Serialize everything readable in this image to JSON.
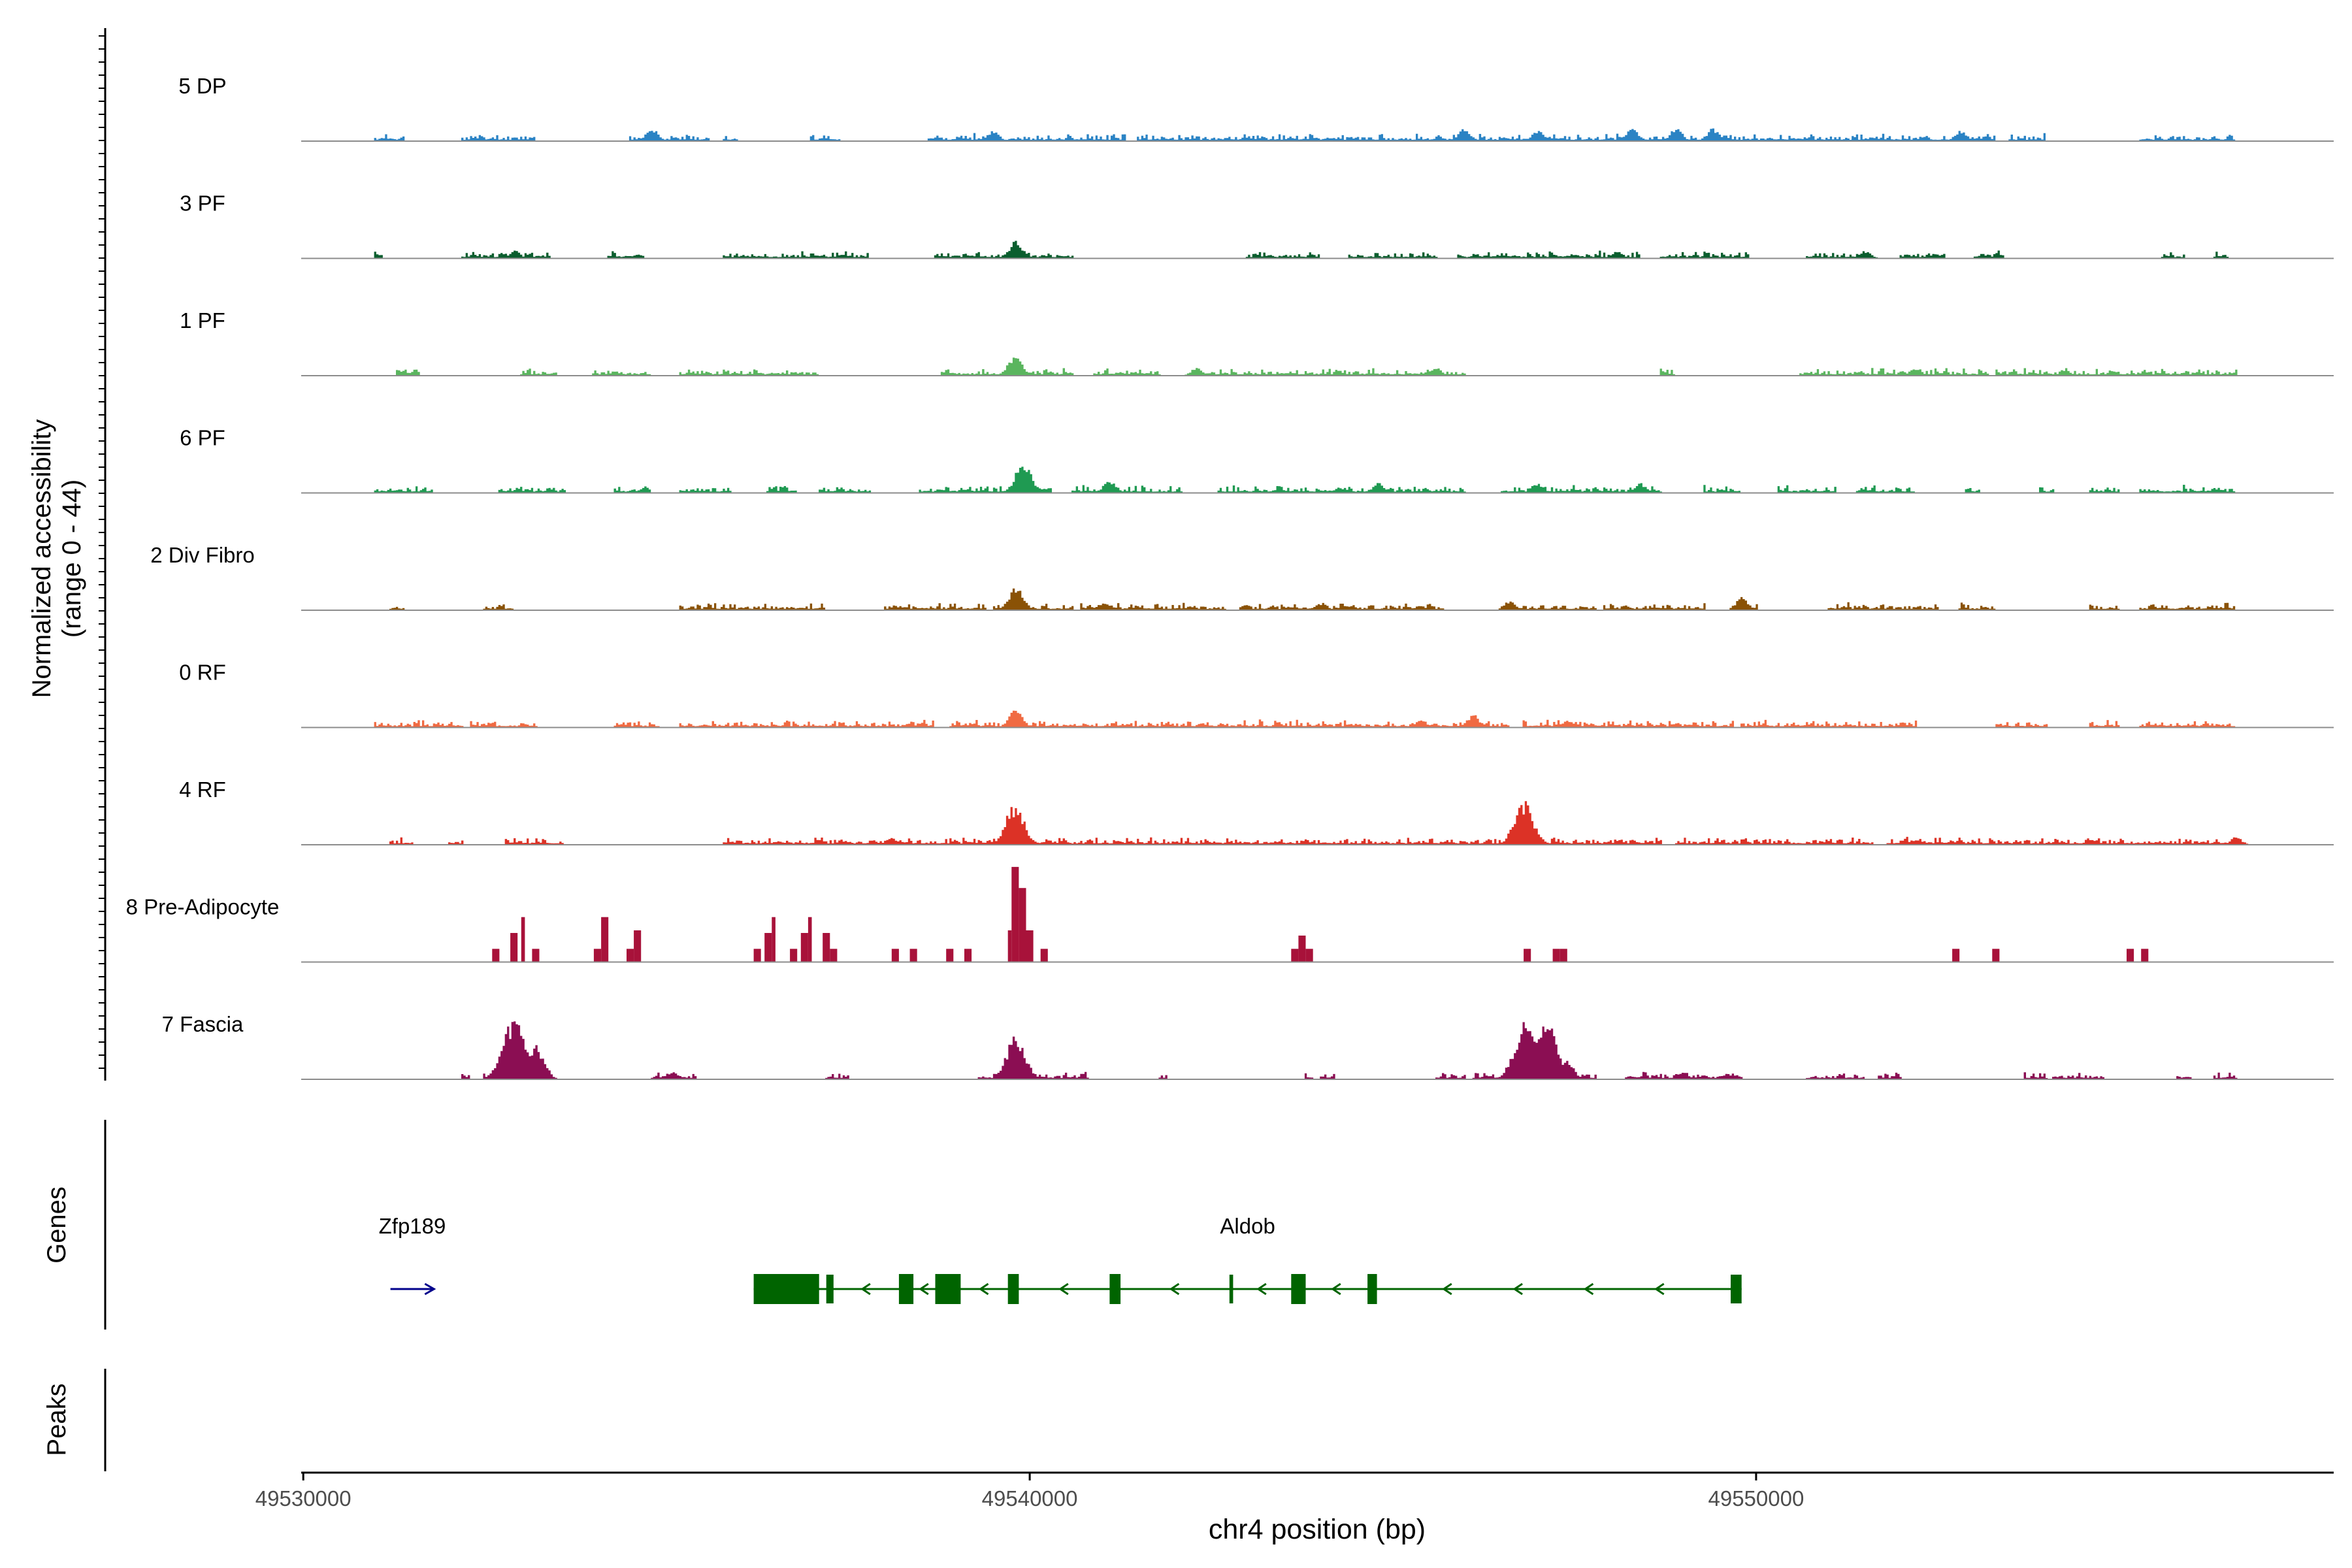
{
  "chart_data": {
    "type": "area",
    "title": "",
    "ylabel_line1": "Normalized accessibility",
    "ylabel_line2": "(range 0 - 44)",
    "ylim": [
      0,
      44
    ],
    "xlabel": "chr4 position (bp)",
    "xlim": [
      49530000,
      49558000
    ],
    "x_ticks": [
      49530000,
      49540000,
      49550000
    ],
    "x_tick_labels": [
      "49530000",
      "49540000",
      "49550000"
    ],
    "tracks": [
      {
        "name": "5 DP",
        "color": "#2b83c4",
        "style": "noisy",
        "seed": 11,
        "bg": [
          [
            49531000,
            49531400
          ],
          [
            49532200,
            49533200
          ],
          [
            49534500,
            49535600
          ],
          [
            49535800,
            49536000
          ],
          [
            49537000,
            49537400
          ],
          [
            49538600,
            49541300
          ],
          [
            49541500,
            49546200
          ],
          [
            49546200,
            49550200
          ],
          [
            49550200,
            49553300
          ],
          [
            49553500,
            49554000
          ],
          [
            49555300,
            49556600
          ]
        ],
        "peaks": [
          [
            49534800,
            5
          ],
          [
            49539500,
            4
          ],
          [
            49546000,
            5
          ],
          [
            49547000,
            4
          ],
          [
            49548300,
            5
          ],
          [
            49548900,
            5
          ],
          [
            49549400,
            5
          ],
          [
            49552800,
            4
          ]
        ]
      },
      {
        "name": "3 PF",
        "color": "#0a5e2e",
        "style": "noisy",
        "seed": 23,
        "bg": [
          [
            49531000,
            49531100
          ],
          [
            49532200,
            49533400
          ],
          [
            49534200,
            49534700
          ],
          [
            49535800,
            49537800
          ],
          [
            49538700,
            49540600
          ],
          [
            49543000,
            49544000
          ],
          [
            49544400,
            49545600
          ],
          [
            49545900,
            49548400
          ],
          [
            49548700,
            49549900
          ],
          [
            49550700,
            49551400
          ],
          [
            49552000,
            49552600
          ],
          [
            49553000,
            49553400
          ],
          [
            49555600,
            49555900
          ],
          [
            49556300,
            49556500
          ]
        ],
        "peaks": [
          [
            49539800,
            7
          ],
          [
            49532900,
            3
          ],
          [
            49548100,
            3
          ],
          [
            49551500,
            3
          ]
        ]
      },
      {
        "name": "1 PF",
        "color": "#5ab55e",
        "style": "noisy",
        "seed": 37,
        "bg": [
          [
            49531300,
            49531600
          ],
          [
            49533000,
            49533500
          ],
          [
            49534000,
            49534800
          ],
          [
            49535200,
            49537100
          ],
          [
            49538800,
            49540600
          ],
          [
            49540900,
            49541800
          ],
          [
            49542200,
            49546000
          ],
          [
            49548700,
            49548900
          ],
          [
            49550600,
            49551800
          ],
          [
            49551800,
            49553200
          ],
          [
            49553300,
            49556600
          ]
        ],
        "peaks": [
          [
            49539800,
            8
          ],
          [
            49542300,
            3
          ],
          [
            49545600,
            3
          ],
          [
            49552200,
            3
          ]
        ]
      },
      {
        "name": "6 PF",
        "color": "#1f9a52",
        "style": "noisy",
        "seed": 41,
        "bg": [
          [
            49531000,
            49531800
          ],
          [
            49532700,
            49533600
          ],
          [
            49534300,
            49534800
          ],
          [
            49535200,
            49535900
          ],
          [
            49536400,
            49536800
          ],
          [
            49537100,
            49537800
          ],
          [
            49538500,
            49540300
          ],
          [
            49540600,
            49542100
          ],
          [
            49542600,
            49546000
          ],
          [
            49546500,
            49548700
          ],
          [
            49549300,
            49549800
          ],
          [
            49550300,
            49551100
          ],
          [
            49551400,
            49552200
          ],
          [
            49552900,
            49553100
          ],
          [
            49553900,
            49554100
          ],
          [
            49554600,
            49555000
          ],
          [
            49555300,
            49556600
          ]
        ],
        "peaks": [
          [
            49539900,
            12
          ],
          [
            49541100,
            5
          ],
          [
            49544800,
            4
          ],
          [
            49547000,
            4
          ],
          [
            49548400,
            4
          ]
        ]
      },
      {
        "name": "2 Div Fibro",
        "color": "#8a5206",
        "style": "noisy",
        "seed": 53,
        "bg": [
          [
            49531200,
            49531400
          ],
          [
            49532500,
            49532900
          ],
          [
            49535200,
            49537200
          ],
          [
            49538000,
            49539400
          ],
          [
            49539500,
            49540600
          ],
          [
            49540700,
            49542700
          ],
          [
            49542900,
            49545700
          ],
          [
            49546500,
            49547800
          ],
          [
            49547900,
            49549300
          ],
          [
            49549700,
            49550000
          ],
          [
            49551000,
            49552500
          ],
          [
            49552800,
            49553300
          ],
          [
            49554600,
            49555000
          ],
          [
            49555300,
            49556600
          ]
        ],
        "peaks": [
          [
            49539800,
            9
          ],
          [
            49541000,
            3
          ],
          [
            49544000,
            3
          ],
          [
            49546600,
            4
          ],
          [
            49549800,
            5
          ]
        ]
      },
      {
        "name": "0 RF",
        "color": "#f06a42",
        "style": "noisy",
        "seed": 67,
        "bg": [
          [
            49531000,
            49532200
          ],
          [
            49532300,
            49533200
          ],
          [
            49534300,
            49534900
          ],
          [
            49535200,
            49538700
          ],
          [
            49538900,
            49546600
          ],
          [
            49546800,
            49549700
          ],
          [
            49549800,
            49552200
          ],
          [
            49553300,
            49554000
          ],
          [
            49554600,
            49555000
          ],
          [
            49555300,
            49556600
          ]
        ],
        "peaks": [
          [
            49539800,
            7
          ],
          [
            49546100,
            5
          ],
          [
            49547400,
            3
          ],
          [
            49545400,
            3
          ]
        ]
      },
      {
        "name": "4 RF",
        "color": "#dc3226",
        "style": "noisy",
        "seed": 79,
        "bg": [
          [
            49531200,
            49531500
          ],
          [
            49532000,
            49532200
          ],
          [
            49532800,
            49533600
          ],
          [
            49535800,
            49546300
          ],
          [
            49546300,
            49548700
          ],
          [
            49548900,
            49551600
          ],
          [
            49551800,
            49556600
          ]
        ],
        "peaks": [
          [
            49539800,
            16
          ],
          [
            49546800,
            17
          ],
          [
            49538100,
            3
          ],
          [
            49556600,
            3
          ]
        ]
      },
      {
        "name": "8 Pre-Adipocyte",
        "color": "#a8123a",
        "style": "blocky",
        "blocks": [
          [
            49532600,
            49532700,
            5
          ],
          [
            49532850,
            49532950,
            11
          ],
          [
            49533000,
            49533050,
            17
          ],
          [
            49533150,
            49533250,
            5
          ],
          [
            49534000,
            49534100,
            5
          ],
          [
            49534100,
            49534200,
            17
          ],
          [
            49534450,
            49534550,
            5
          ],
          [
            49534550,
            49534650,
            12
          ],
          [
            49536200,
            49536300,
            5
          ],
          [
            49536350,
            49536450,
            11
          ],
          [
            49536450,
            49536500,
            17
          ],
          [
            49536700,
            49536800,
            5
          ],
          [
            49536850,
            49536950,
            11
          ],
          [
            49536950,
            49537000,
            17
          ],
          [
            49537150,
            49537250,
            11
          ],
          [
            49537250,
            49537350,
            5
          ],
          [
            49538100,
            49538200,
            5
          ],
          [
            49538350,
            49538450,
            5
          ],
          [
            49538850,
            49538950,
            5
          ],
          [
            49539100,
            49539200,
            5
          ],
          [
            49539700,
            49539750,
            12
          ],
          [
            49539750,
            49539850,
            36
          ],
          [
            49539850,
            49539950,
            28
          ],
          [
            49539950,
            49540050,
            12
          ],
          [
            49540150,
            49540250,
            5
          ],
          [
            49543600,
            49543700,
            5
          ],
          [
            49543700,
            49543800,
            10
          ],
          [
            49543800,
            49543900,
            5
          ],
          [
            49546800,
            49546900,
            5
          ],
          [
            49547200,
            49547300,
            5
          ],
          [
            49547300,
            49547400,
            5
          ],
          [
            49552700,
            49552800,
            5
          ],
          [
            49553250,
            49553350,
            5
          ],
          [
            49555100,
            49555200,
            5
          ],
          [
            49555300,
            49555400,
            5
          ]
        ]
      },
      {
        "name": "7 Fascia",
        "color": "#8b0e53",
        "style": "noisy",
        "seed": 97,
        "bg": [
          [
            49532200,
            49532300
          ],
          [
            49532500,
            49533300
          ],
          [
            49534800,
            49535400
          ],
          [
            49537200,
            49537500
          ],
          [
            49539300,
            49540200
          ],
          [
            49540200,
            49540800
          ],
          [
            49541800,
            49541900
          ],
          [
            49543800,
            49543900
          ],
          [
            49544000,
            49544200
          ],
          [
            49545600,
            49546000
          ],
          [
            49546100,
            49546400
          ],
          [
            49546500,
            49547800
          ],
          [
            49548200,
            49549800
          ],
          [
            49550700,
            49551500
          ],
          [
            49551700,
            49552000
          ],
          [
            49553700,
            49554000
          ],
          [
            49554100,
            49554800
          ],
          [
            49555800,
            49556000
          ],
          [
            49556300,
            49556600
          ]
        ],
        "peaks": [
          [
            49532900,
            25
          ],
          [
            49533200,
            13
          ],
          [
            49539800,
            17
          ],
          [
            49546800,
            22
          ],
          [
            49547100,
            24
          ],
          [
            49547400,
            7
          ],
          [
            49535100,
            3
          ],
          [
            49549000,
            3
          ]
        ]
      }
    ],
    "genes_label": "Genes",
    "peaks_label": "Peaks",
    "genes": [
      {
        "name": "Zfp189",
        "strand": "+",
        "color": "#00008b",
        "start": 49531200,
        "end": 49531800
      },
      {
        "name": "Aldob",
        "strand": "-",
        "color": "#006400",
        "start": 49536200,
        "end": 49549800,
        "exons": [
          [
            49536200,
            49537100
          ],
          [
            49537200,
            49537300
          ],
          [
            49538200,
            49538400
          ],
          [
            49538700,
            49539050
          ],
          [
            49539700,
            49539850
          ],
          [
            49541100,
            49541250
          ],
          [
            49542750,
            49542800
          ],
          [
            49543600,
            49543800
          ],
          [
            49544650,
            49544780
          ],
          [
            49549650,
            49549800
          ]
        ],
        "tall_exons": [
          0,
          2,
          3,
          4,
          5,
          7,
          8
        ]
      }
    ]
  }
}
